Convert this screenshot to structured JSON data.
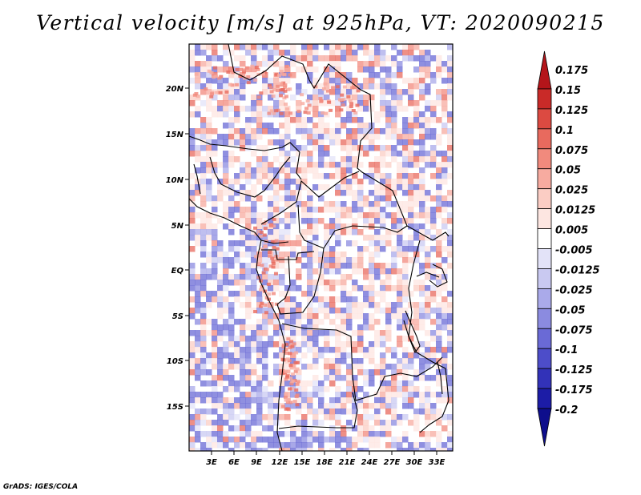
{
  "title": "Vertical velocity [m/s] at 925hPa, VT: 2020090215",
  "credit": "GrADS: IGES/COLA",
  "map": {
    "lat_labels": [
      "20N",
      "15N",
      "10N",
      "5N",
      "EQ",
      "5S",
      "10S",
      "15S"
    ],
    "lon_labels": [
      "3E",
      "6E",
      "9E",
      "12E",
      "15E",
      "18E",
      "21E",
      "24E",
      "27E",
      "30E",
      "33E"
    ]
  },
  "colorbar": {
    "labels": [
      "0.175",
      "0.15",
      "0.125",
      "0.1",
      "0.075",
      "0.05",
      "0.025",
      "0.0125",
      "0.005",
      "-0.005",
      "-0.0125",
      "-0.025",
      "-0.05",
      "-0.075",
      "-0.1",
      "-0.125",
      "-0.175",
      "-0.2"
    ],
    "colors": [
      "#b4151a",
      "#c92a28",
      "#dc4a41",
      "#e86a5e",
      "#f18a7d",
      "#f7aba0",
      "#fbcdc4",
      "#fde6e1",
      "#ffffff",
      "#e3e3f8",
      "#c9c9f1",
      "#aaaaea",
      "#8b8be0",
      "#6a6ad6",
      "#4d4dc9",
      "#3232b8",
      "#1c1ca6",
      "#0e0e8c"
    ]
  }
}
